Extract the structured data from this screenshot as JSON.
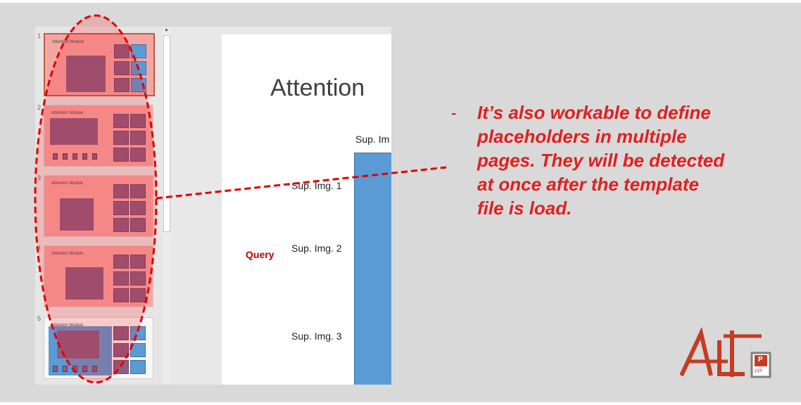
{
  "thumbnails": [
    {
      "number": "1",
      "title": "Attention Module",
      "active": true,
      "blue": false
    },
    {
      "number": "2",
      "title": "Attention Module",
      "active": false,
      "blue": false
    },
    {
      "number": "3",
      "title": "Attention Module",
      "active": false,
      "blue": false
    },
    {
      "number": "4",
      "title": "Attention Module",
      "active": false,
      "blue": false
    },
    {
      "number": "5",
      "title": "Attention Module",
      "active": false,
      "blue": true
    }
  ],
  "slide": {
    "title": "Attention",
    "sup_top": "Sup. Im",
    "sup_img_1": "Sup. Img. 1",
    "sup_img_2": "Sup. Img. 2",
    "sup_img_3": "Sup. Img. 3",
    "query": "Query"
  },
  "annotation": {
    "bullet": "-",
    "lines": [
      "It’s also workable to define",
      "placeholders in multiple",
      "pages. They will be detected",
      "at once after the template",
      "file is load."
    ]
  },
  "logo": {
    "icon_text_1": "P",
    "icon_text_2": "ppt"
  },
  "colors": {
    "annotation": "#e02020",
    "dashed": "#e00000",
    "accent": "#c55a3e",
    "placeholder_blue": "#5b9bd5",
    "placeholder_purple": "#8c5f86"
  }
}
